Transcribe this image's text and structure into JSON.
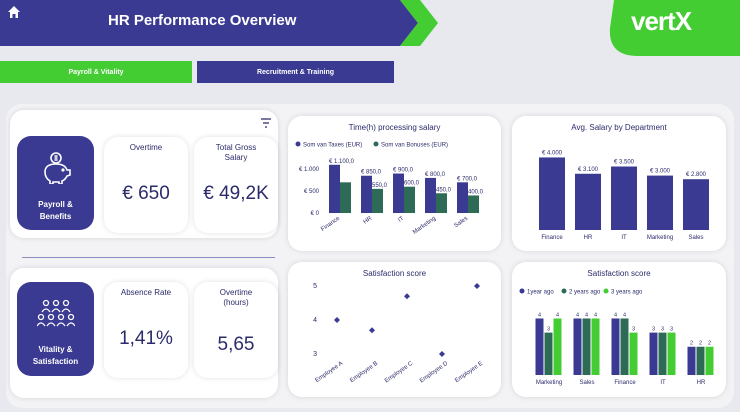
{
  "header": {
    "title": "HR Performance Overview",
    "logo": "vertX"
  },
  "tabs": [
    {
      "label": "Payroll & Vitality",
      "color": "#44cc33"
    },
    {
      "label": "Recruitment & Training",
      "color": "#3a3a92"
    }
  ],
  "colors": {
    "navy": "#3a3a92",
    "green": "#44cc33",
    "dark_green": "#2e6b57"
  },
  "sections": {
    "payroll": {
      "label_line1": "Payroll &",
      "label_line2": "Benefits",
      "icon": "piggy-bank-icon"
    },
    "vitality": {
      "label_line1": "Vitality &",
      "label_line2": "Satisfaction",
      "icon": "people-group-icon"
    }
  },
  "kpis": {
    "overtime": {
      "label": "Overtime",
      "value": "€ 650"
    },
    "gross_salary": {
      "label_line1": "Total Gross",
      "label_line2": "Salary",
      "value": "€ 49,2K"
    },
    "absence_rate": {
      "label": "Absence Rate",
      "value": "1,41%"
    },
    "overtime_hours": {
      "label_line1": "Overtime",
      "label_line2": "(hours)",
      "value": "5,65"
    }
  },
  "chart_data": [
    {
      "type": "bar",
      "title": "Time(h) processing salary",
      "categories": [
        "Finance",
        "HR",
        "IT",
        "Marketing",
        "Sales"
      ],
      "series": [
        {
          "name": "Som van Taxes (EUR)",
          "values": [
            1100,
            850,
            900,
            800,
            700
          ],
          "labels": [
            "€ 1.100,0",
            "€ 850,0",
            "€ 900,0",
            "€ 800,0",
            "€ 700,0"
          ],
          "color": "#3a3a92"
        },
        {
          "name": "Som van Bonuses (EUR)",
          "values": [
            700,
            550,
            600,
            450,
            400
          ],
          "labels": [
            "",
            "550,0",
            "600,0",
            "450,0",
            "400,0"
          ],
          "color": "#2e6b57"
        }
      ],
      "yticks": [
        "€ 1.000",
        "€ 500",
        "€ 0"
      ],
      "ylim": [
        0,
        1300
      ]
    },
    {
      "type": "bar",
      "title": "Avg. Salary by Department",
      "categories": [
        "Finance",
        "HR",
        "IT",
        "Marketing",
        "Sales"
      ],
      "values": [
        4000,
        3100,
        3500,
        3000,
        2800
      ],
      "labels": [
        "€ 4.000",
        "€ 3.100",
        "€ 3.500",
        "€ 3.000",
        "€ 2.800"
      ],
      "ylim": [
        0,
        4300
      ]
    },
    {
      "type": "scatter",
      "title": "Satisfaction score",
      "categories": [
        "Employee A",
        "Employee B",
        "Employee C",
        "Employee D",
        "Employee E"
      ],
      "values": [
        4,
        3.7,
        4.7,
        3,
        5
      ],
      "yticks": [
        "5",
        "4",
        "3"
      ],
      "ylim": [
        3,
        5
      ]
    },
    {
      "type": "bar",
      "title": "Satisfaction score",
      "categories": [
        "Marketing",
        "Sales",
        "Finance",
        "IT",
        "HR"
      ],
      "series": [
        {
          "name": "1year ago",
          "values": [
            4,
            4,
            4,
            3,
            2
          ],
          "color": "#3a3a92"
        },
        {
          "name": "2 years ago",
          "values": [
            3,
            4,
            4,
            3,
            2
          ],
          "color": "#2e6b57"
        },
        {
          "name": "3 years ago",
          "values": [
            4,
            4,
            3,
            3,
            2
          ],
          "color": "#44cc33"
        }
      ],
      "ylim": [
        0,
        4.6
      ]
    }
  ]
}
